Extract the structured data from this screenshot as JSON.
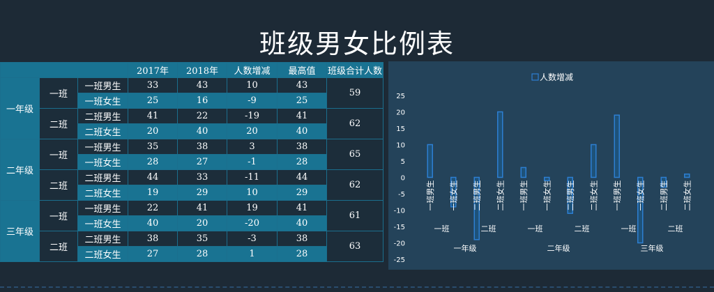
{
  "title": "班级男女比例表",
  "table": {
    "headers": [
      "2017年",
      "2018年",
      "人数增减",
      "最高值",
      "班级合计人数"
    ],
    "grades": [
      {
        "name": "一年级",
        "classes": [
          {
            "name": "一班",
            "total": "59",
            "rows": [
              {
                "label": "一班男生",
                "y2017": "33",
                "y2018": "43",
                "change": "10",
                "max": "43"
              },
              {
                "label": "一班女生",
                "y2017": "25",
                "y2018": "16",
                "change": "-9",
                "max": "25"
              }
            ]
          },
          {
            "name": "二班",
            "total": "62",
            "rows": [
              {
                "label": "二班男生",
                "y2017": "41",
                "y2018": "22",
                "change": "-19",
                "max": "41"
              },
              {
                "label": "二班女生",
                "y2017": "20",
                "y2018": "40",
                "change": "20",
                "max": "40"
              }
            ]
          }
        ]
      },
      {
        "name": "二年级",
        "classes": [
          {
            "name": "一班",
            "total": "65",
            "rows": [
              {
                "label": "一班男生",
                "y2017": "35",
                "y2018": "38",
                "change": "3",
                "max": "38"
              },
              {
                "label": "一班女生",
                "y2017": "28",
                "y2018": "27",
                "change": "-1",
                "max": "28"
              }
            ]
          },
          {
            "name": "二班",
            "total": "62",
            "rows": [
              {
                "label": "二班男生",
                "y2017": "44",
                "y2018": "33",
                "change": "-11",
                "max": "44"
              },
              {
                "label": "二班女生",
                "y2017": "19",
                "y2018": "29",
                "change": "10",
                "max": "29"
              }
            ]
          }
        ]
      },
      {
        "name": "三年级",
        "classes": [
          {
            "name": "一班",
            "total": "61",
            "rows": [
              {
                "label": "一班男生",
                "y2017": "22",
                "y2018": "41",
                "change": "19",
                "max": "41"
              },
              {
                "label": "一班女生",
                "y2017": "40",
                "y2018": "20",
                "change": "-20",
                "max": "40"
              }
            ]
          },
          {
            "name": "二班",
            "total": "63",
            "rows": [
              {
                "label": "二班男生",
                "y2017": "38",
                "y2018": "35",
                "change": "-3",
                "max": "38"
              },
              {
                "label": "二班女生",
                "y2017": "27",
                "y2018": "28",
                "change": "1",
                "max": "28"
              }
            ]
          }
        ]
      }
    ]
  },
  "chart_data": {
    "type": "bar",
    "legend": "人数增减",
    "legend_position": "top",
    "series": [
      {
        "name": "人数增减",
        "values": [
          10,
          -9,
          -19,
          20,
          3,
          -1,
          -11,
          10,
          19,
          -20,
          -3,
          1
        ]
      }
    ],
    "categories": [
      "一班男生",
      "一班女生",
      "二班男生",
      "二班女生",
      "一班男生",
      "一班女生",
      "二班男生",
      "二班女生",
      "一班男生",
      "一班女生",
      "二班男生",
      "二班女生"
    ],
    "class_labels": [
      "一班",
      "二班",
      "一班",
      "二班",
      "一班",
      "二班"
    ],
    "grade_labels": [
      "一年级",
      "二年级",
      "三年级"
    ],
    "yticks": [
      25,
      20,
      15,
      10,
      5,
      0,
      -5,
      -10,
      -15,
      -20,
      -25
    ],
    "ylim": [
      -25,
      25
    ],
    "grid": false,
    "colors": {
      "bar_fill": "#1a5f93",
      "bar_stroke": "#2d7fd2",
      "text": "#ffffff",
      "panel": "#24435a"
    }
  }
}
